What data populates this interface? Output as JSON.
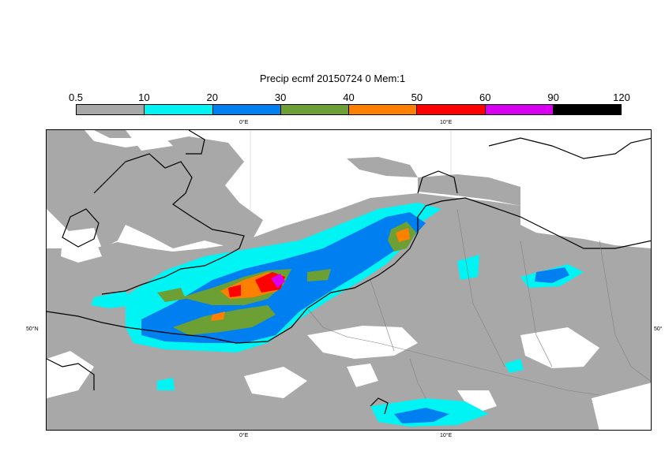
{
  "title": "Precip ecmf 20150724 0 Mem:1",
  "legend": {
    "ticks": [
      "0.5",
      "10",
      "20",
      "30",
      "40",
      "50",
      "60",
      "90",
      "120"
    ],
    "colors": [
      "#a8a8a8",
      "#00f4f4",
      "#0080f0",
      "#6ca034",
      "#ff8000",
      "#ff0000",
      "#d800f0",
      "#000000"
    ]
  },
  "axes": {
    "top_lon": [
      "0°E",
      "10°E"
    ],
    "bottom_lon": [
      "0°E",
      "10°E"
    ],
    "left_lat": "50°N",
    "right_lat": "50°"
  },
  "colors": {
    "land_grey": "#a8a8a8",
    "coast": "#000000",
    "border": "#808080"
  }
}
